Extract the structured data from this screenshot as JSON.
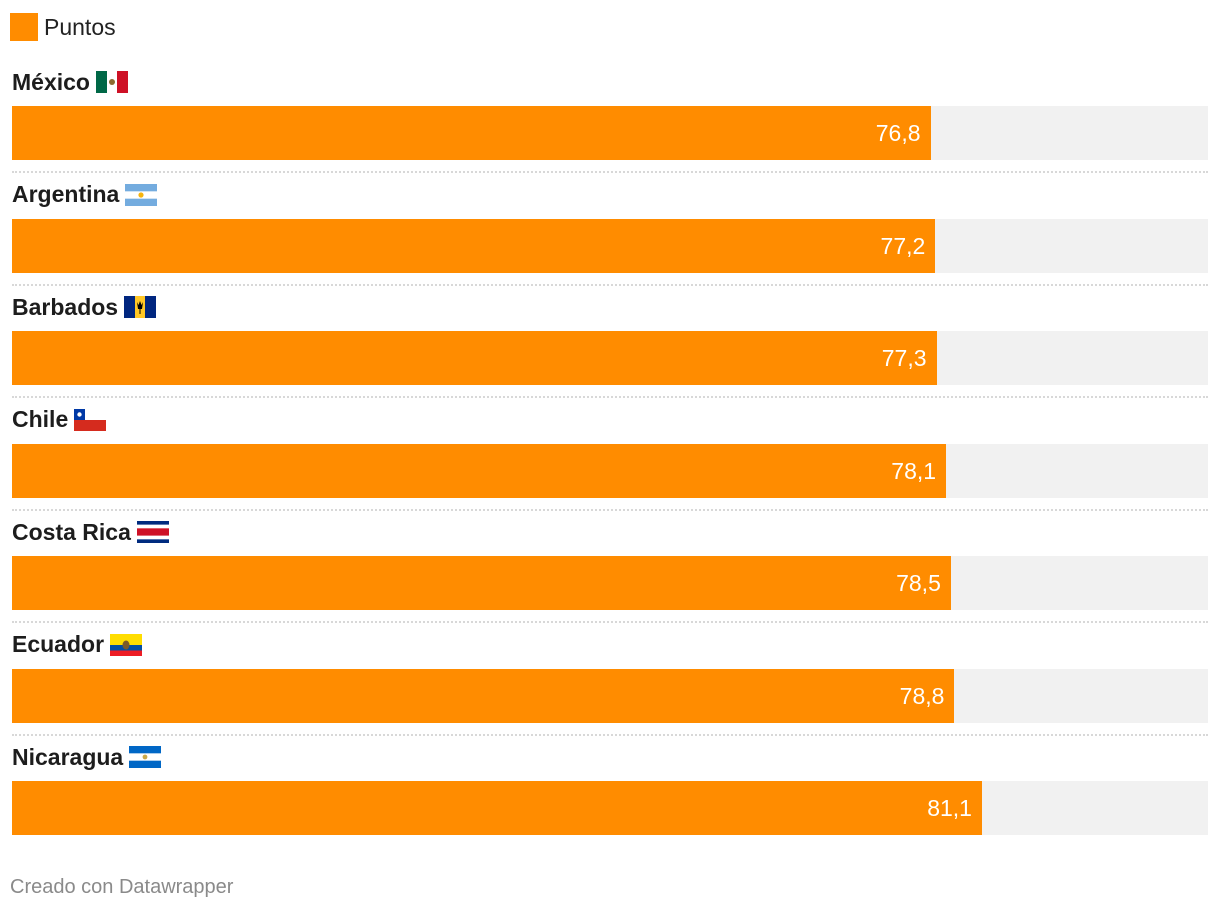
{
  "legend": {
    "label": "Puntos",
    "color": "#ff8c00"
  },
  "footer": {
    "credit": "Creado con Datawrapper"
  },
  "colors": {
    "bar": "#ff8c00",
    "track": "#f1f1f1"
  },
  "chart_data": {
    "type": "bar",
    "orientation": "horizontal",
    "categories": [
      "México",
      "Argentina",
      "Barbados",
      "Chile",
      "Costa Rica",
      "Ecuador",
      "Nicaragua"
    ],
    "flags": [
      "mexico-flag-icon",
      "argentina-flag-icon",
      "barbados-flag-icon",
      "chile-flag-icon",
      "costa-rica-flag-icon",
      "ecuador-flag-icon",
      "nicaragua-flag-icon"
    ],
    "values": [
      76.8,
      77.2,
      77.3,
      78.1,
      78.5,
      78.8,
      81.1
    ],
    "value_labels": [
      "76,8",
      "77,2",
      "77,3",
      "78,1",
      "78,5",
      "78,8",
      "81,1"
    ],
    "series": [
      {
        "name": "Puntos",
        "values": [
          76.8,
          77.2,
          77.3,
          78.1,
          78.5,
          78.8,
          81.1
        ]
      }
    ],
    "xlim": [
      0,
      100
    ],
    "grid": false,
    "legend_position": "top-left"
  }
}
